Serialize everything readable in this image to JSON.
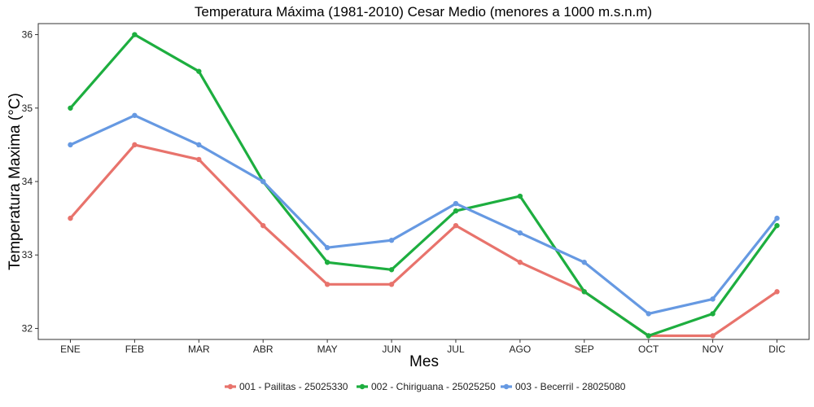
{
  "chart_data": {
    "type": "line",
    "title": "Temperatura Máxima (1981-2010) Cesar Medio (menores a 1000 m.s.n.m)",
    "xlabel": "Mes",
    "ylabel": "Temperatura Maxima (°C)",
    "categories": [
      "ENE",
      "FEB",
      "MAR",
      "ABR",
      "MAY",
      "JUN",
      "JUL",
      "AGO",
      "SEP",
      "OCT",
      "NOV",
      "DIC"
    ],
    "ylim": [
      31.85,
      36.15
    ],
    "yticks": [
      32,
      33,
      34,
      35,
      36
    ],
    "grid": false,
    "legend_position": "bottom",
    "series": [
      {
        "name": "001 - Pailitas - 25025330",
        "color": "#E8736C",
        "values": [
          33.5,
          34.5,
          34.3,
          33.4,
          32.6,
          32.6,
          33.4,
          32.9,
          32.5,
          31.9,
          31.9,
          32.5
        ]
      },
      {
        "name": "002 - Chiriguana - 25025250",
        "color": "#1DAE3F",
        "values": [
          35.0,
          36.0,
          35.5,
          34.0,
          32.9,
          32.8,
          33.6,
          33.8,
          32.5,
          31.9,
          32.2,
          33.4
        ]
      },
      {
        "name": "003 - Becerril - 28025080",
        "color": "#6699E2",
        "values": [
          34.5,
          34.9,
          34.5,
          34.0,
          33.1,
          33.2,
          33.7,
          33.3,
          32.9,
          32.2,
          32.4,
          33.5
        ]
      }
    ]
  }
}
